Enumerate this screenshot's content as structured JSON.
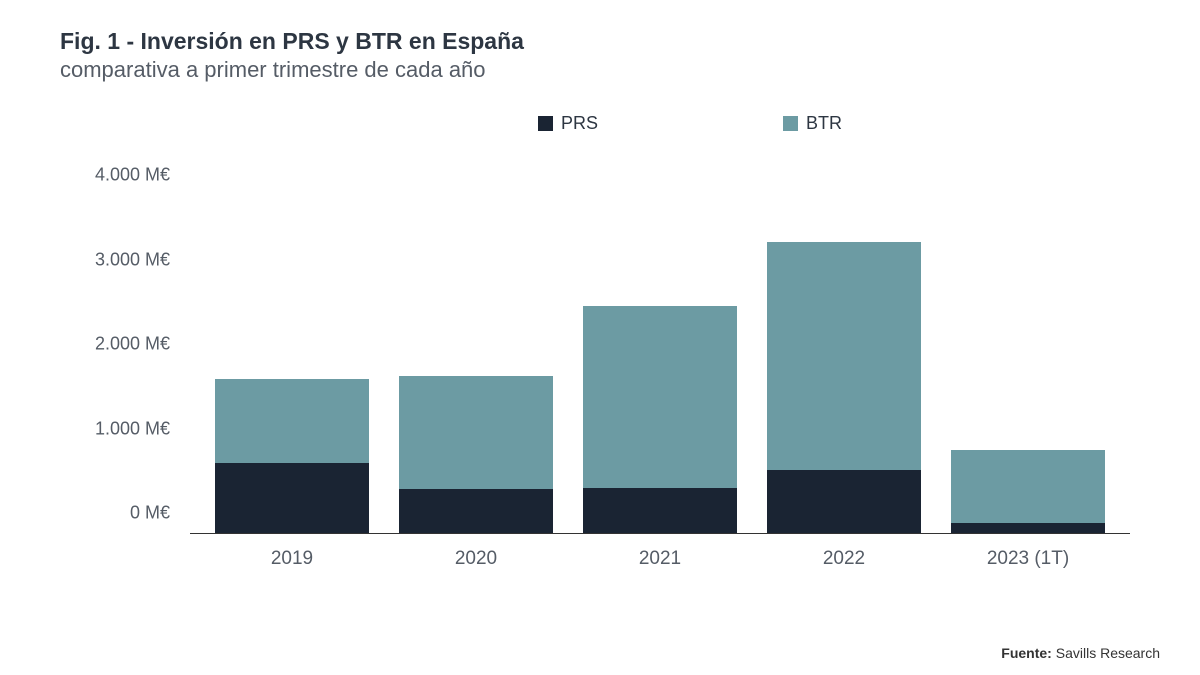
{
  "title": {
    "bold": "Fig. 1 - Inversión en PRS y BTR en España",
    "sub": "comparativa a primer trimestre de cada año",
    "bold_color": "#2d3642",
    "sub_color": "#555c66",
    "bold_fontsize": 23,
    "sub_fontsize": 22
  },
  "chart": {
    "type": "stacked-bar",
    "background_color": "#ffffff",
    "axis_color": "#333333",
    "ylim": [
      0,
      4500
    ],
    "yticks": [
      {
        "value": 0,
        "label": "0 M€"
      },
      {
        "value": 1000,
        "label": "1.000 M€"
      },
      {
        "value": 2000,
        "label": "2.000 M€"
      },
      {
        "value": 3000,
        "label": "3.000 M€"
      },
      {
        "value": 4000,
        "label": "4.000 M€"
      }
    ],
    "categories": [
      "2019",
      "2020",
      "2021",
      "2022",
      "2023 (1T)"
    ],
    "series": [
      {
        "key": "prs",
        "label": "PRS",
        "color": "#1a2433"
      },
      {
        "key": "btr",
        "label": "BTR",
        "color": "#6c9ba3"
      }
    ],
    "data": {
      "prs": [
        830,
        520,
        540,
        750,
        120
      ],
      "btr": [
        1000,
        1350,
        2150,
        2700,
        870
      ]
    },
    "bar_width_pct": 84,
    "label_fontsize": 19,
    "label_color": "#555c66"
  },
  "legend": {
    "fontsize": 18,
    "color": "#2d3642"
  },
  "source": {
    "label": "Fuente:",
    "value": "Savills Research",
    "fontsize": 14,
    "color": "#333333"
  }
}
